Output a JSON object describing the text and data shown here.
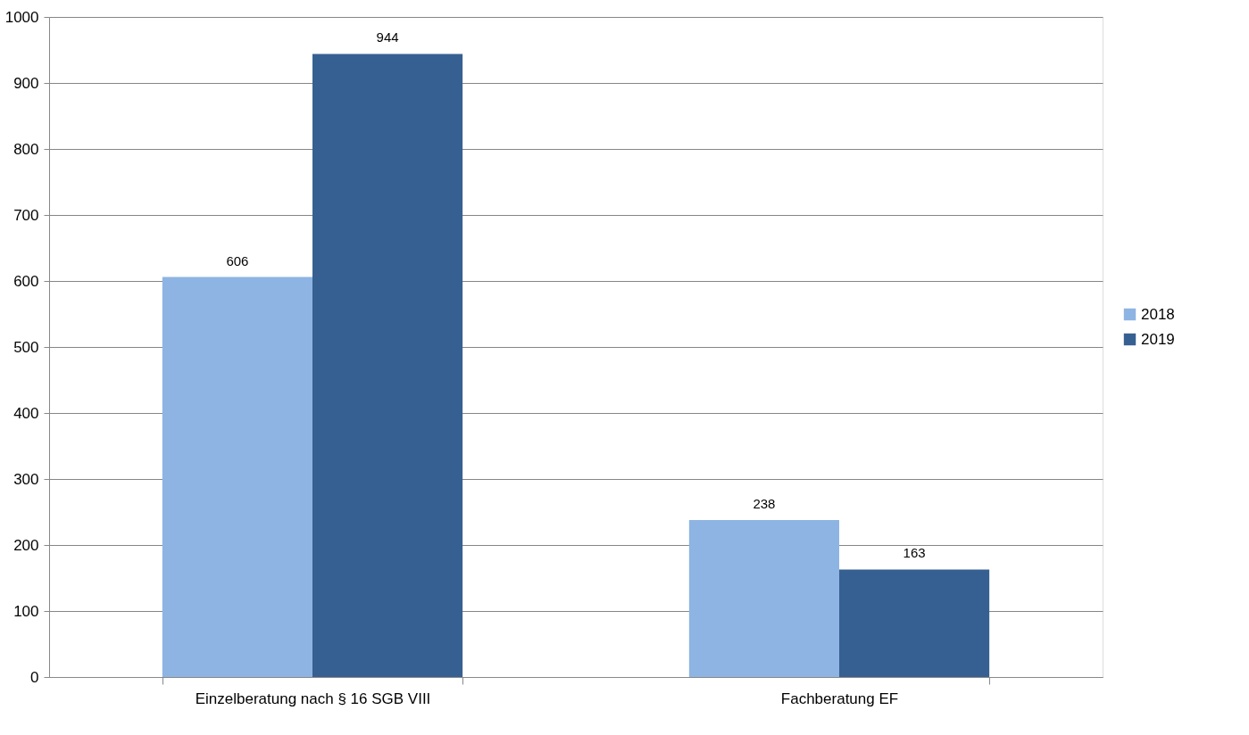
{
  "chart_data": {
    "type": "bar",
    "categories": [
      "Einzelberatung nach § 16 SGB VIII",
      "Fachberatung EF"
    ],
    "series": [
      {
        "name": "2018",
        "color": "#8eb4e3",
        "values": [
          606,
          238
        ]
      },
      {
        "name": "2019",
        "color": "#376092",
        "values": [
          944,
          163
        ]
      }
    ],
    "ylim": [
      0,
      1000
    ],
    "yticks": [
      0,
      100,
      200,
      300,
      400,
      500,
      600,
      700,
      800,
      900,
      1000
    ],
    "grid": "y",
    "legend": "right",
    "data_labels": true
  }
}
